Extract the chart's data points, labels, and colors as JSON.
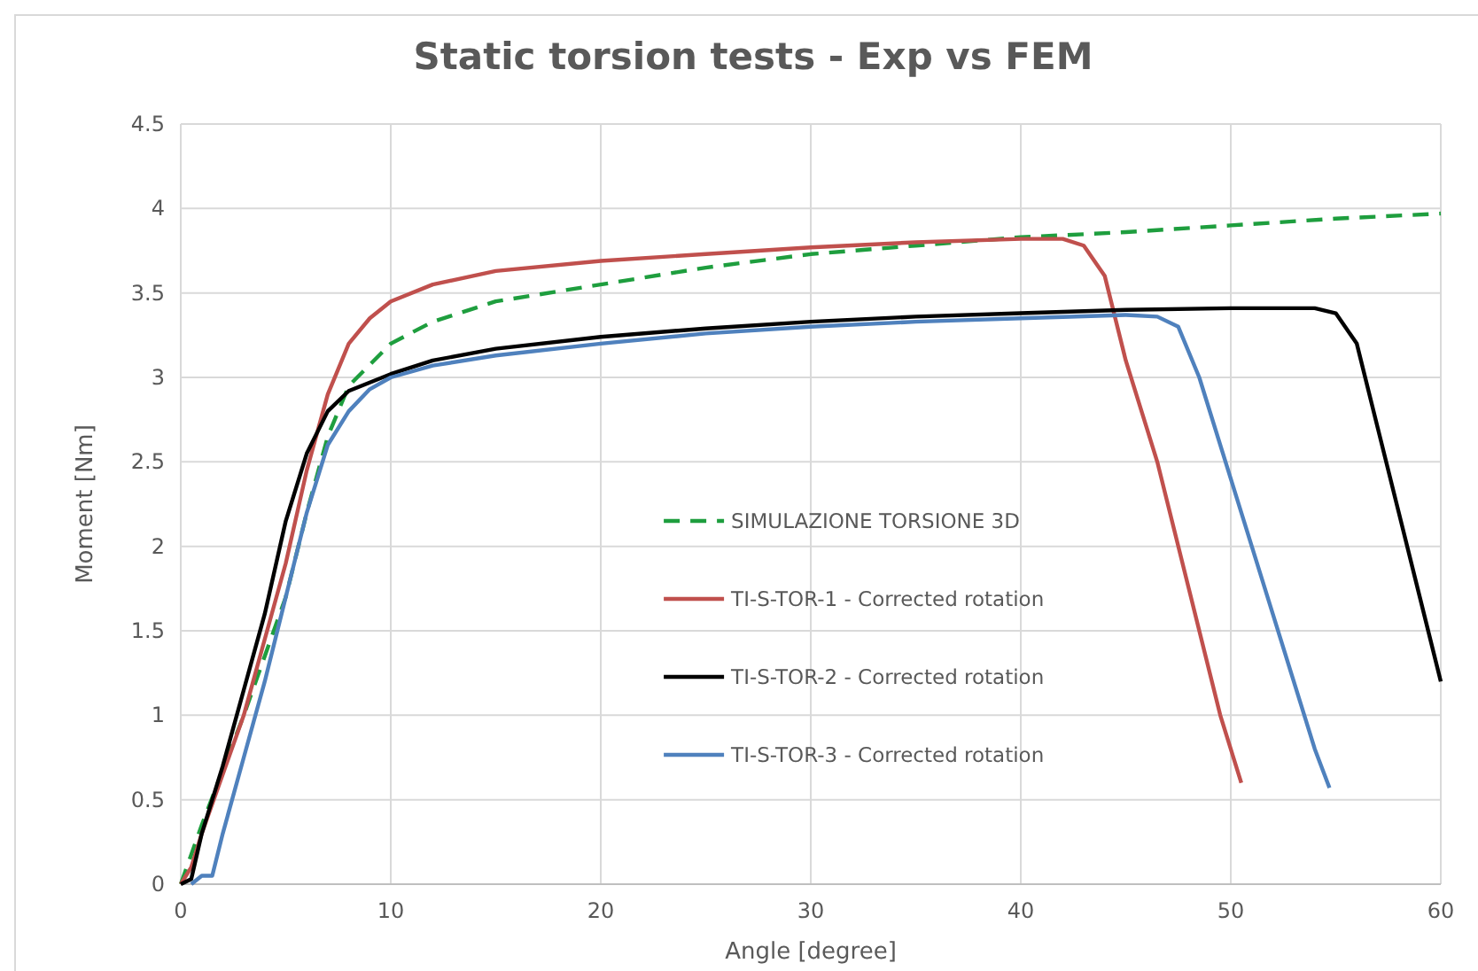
{
  "chart_data": {
    "type": "line",
    "title": "Static torsion tests - Exp vs FEM",
    "xlabel": "Angle [degree]",
    "ylabel": "Moment [Nm]",
    "xlim": [
      0,
      60
    ],
    "xticks": [
      0,
      10,
      20,
      30,
      40,
      50,
      60
    ],
    "ylim": [
      0,
      4.5
    ],
    "yticks": [
      0,
      0.5,
      1,
      1.5,
      2,
      2.5,
      3,
      3.5,
      4,
      4.5
    ],
    "grid": true,
    "legend": "center",
    "marker": "none",
    "series": [
      {
        "name": "SIMULAZIONE TORSIONE 3D",
        "color": "#1e9e3e",
        "line_style": "dashed",
        "x": [
          0,
          1,
          3,
          5,
          6,
          7,
          8,
          10,
          12,
          15,
          20,
          25,
          30,
          35,
          40,
          45,
          50,
          55,
          60
        ],
        "values": [
          0,
          0.35,
          1.0,
          1.7,
          2.2,
          2.65,
          2.95,
          3.2,
          3.33,
          3.45,
          3.55,
          3.65,
          3.73,
          3.78,
          3.83,
          3.86,
          3.9,
          3.94,
          3.97
        ]
      },
      {
        "name": "TI-S-TOR-1 - Corrected rotation",
        "color": "#c0504d",
        "line_style": "solid",
        "x": [
          0,
          0.5,
          1,
          2,
          3,
          4,
          5,
          6,
          7,
          8,
          9,
          10,
          12,
          15,
          20,
          25,
          30,
          35,
          40,
          42,
          43,
          44,
          45,
          46.5,
          48,
          49.5,
          50.5
        ],
        "values": [
          0,
          0.1,
          0.3,
          0.65,
          1.0,
          1.45,
          1.9,
          2.45,
          2.9,
          3.2,
          3.35,
          3.45,
          3.55,
          3.63,
          3.69,
          3.73,
          3.77,
          3.8,
          3.82,
          3.82,
          3.78,
          3.6,
          3.1,
          2.5,
          1.75,
          1.0,
          0.6
        ]
      },
      {
        "name": "TI-S-TOR-2 - Corrected rotation",
        "color": "#000000",
        "line_style": "solid",
        "x": [
          0,
          0.5,
          1,
          2,
          3,
          4,
          5,
          6,
          7,
          8,
          10,
          12,
          15,
          20,
          25,
          30,
          35,
          40,
          45,
          50,
          54,
          55,
          56,
          57,
          58,
          59,
          60
        ],
        "values": [
          0,
          0.03,
          0.3,
          0.7,
          1.15,
          1.6,
          2.15,
          2.55,
          2.8,
          2.92,
          3.02,
          3.1,
          3.17,
          3.24,
          3.29,
          3.33,
          3.36,
          3.38,
          3.4,
          3.41,
          3.41,
          3.38,
          3.2,
          2.7,
          2.2,
          1.7,
          1.2
        ]
      },
      {
        "name": "TI-S-TOR-3 - Corrected rotation",
        "color": "#4f81bd",
        "line_style": "solid",
        "x": [
          0.5,
          1,
          1.5,
          2,
          3,
          4,
          5,
          6,
          7,
          8,
          9,
          10,
          12,
          15,
          20,
          25,
          30,
          35,
          40,
          45,
          46.5,
          47.5,
          48.5,
          50,
          52,
          54,
          54.7
        ],
        "values": [
          0,
          0.05,
          0.05,
          0.3,
          0.75,
          1.2,
          1.7,
          2.2,
          2.6,
          2.8,
          2.93,
          3.0,
          3.07,
          3.13,
          3.2,
          3.26,
          3.3,
          3.33,
          3.35,
          3.37,
          3.36,
          3.3,
          3.0,
          2.4,
          1.6,
          0.8,
          0.57
        ]
      }
    ]
  }
}
